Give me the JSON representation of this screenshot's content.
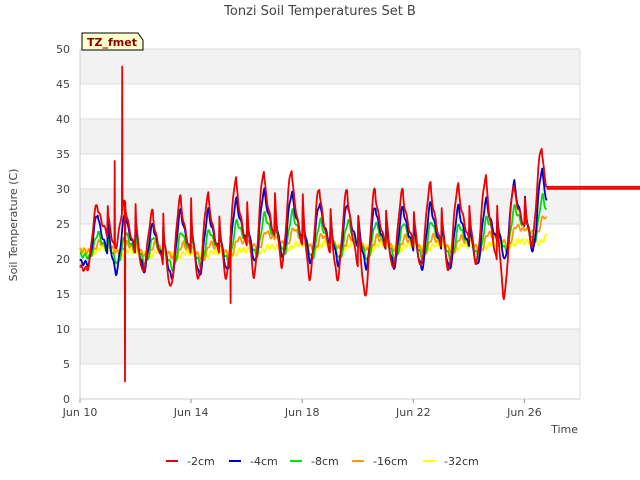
{
  "chart_data": {
    "type": "line",
    "title": "Tonzi Soil Temperatures Set B",
    "xlabel": "Time",
    "ylabel": "Soil Temperature (C)",
    "badge": "TZ_fmet",
    "xlim": [
      "2023-06-10",
      "2023-06-28"
    ],
    "ylim": [
      0,
      50
    ],
    "yticks": [
      0,
      5,
      10,
      15,
      20,
      25,
      30,
      35,
      40,
      45,
      50
    ],
    "xticks": [
      {
        "value": "2023-06-10",
        "label": "Jun 10"
      },
      {
        "value": "2023-06-14",
        "label": "Jun 14"
      },
      {
        "value": "2023-06-18",
        "label": "Jun 18"
      },
      {
        "value": "2023-06-22",
        "label": "Jun 22"
      },
      {
        "value": "2023-06-26",
        "label": "Jun 26"
      }
    ],
    "grid": "horizontal-bands",
    "legend_position": "bottom",
    "start_date": "2023-06-10",
    "series": [
      {
        "name": "-2cm",
        "color": "#ee0000",
        "daily_min": [
          18.5,
          21.5,
          18.0,
          15.8,
          17.0,
          17.2,
          17.5,
          19.0,
          17.2,
          17.0,
          14.6,
          18.5,
          18.8,
          18.2,
          19.3,
          14.5,
          22.0
        ],
        "daily_max": [
          27.8,
          28.2,
          26.8,
          28.8,
          29.2,
          31.5,
          32.5,
          32.8,
          30.2,
          30.0,
          30.0,
          29.8,
          30.7,
          30.5,
          31.8,
          30.5,
          36.0
        ],
        "spikes": [
          {
            "x": 1.25,
            "y": 34.0
          },
          {
            "x": 1.52,
            "y": 47.5
          },
          {
            "x": 1.62,
            "y": 2.5
          },
          {
            "x": 5.42,
            "y": 13.7
          },
          {
            "x": 20.6,
            "y": 16.0
          },
          {
            "x": 21.72,
            "y": 14.5
          },
          {
            "x": 21.85,
            "y": 16.2
          }
        ]
      },
      {
        "name": "-4cm",
        "color": "#0000cc",
        "daily_min": [
          19.3,
          18.0,
          18.3,
          17.2,
          17.6,
          18.2,
          19.5,
          20.2,
          19.5,
          19.2,
          18.8,
          18.8,
          18.5,
          18.5,
          19.0,
          19.8,
          21.0
        ],
        "daily_max": [
          26.5,
          26.5,
          25.0,
          27.0,
          27.0,
          28.5,
          29.8,
          29.5,
          28.0,
          28.0,
          27.5,
          27.5,
          28.0,
          27.5,
          28.5,
          31.0,
          32.8
        ]
      },
      {
        "name": "-8cm",
        "color": "#00dd00",
        "daily_min": [
          20.3,
          19.3,
          19.3,
          18.5,
          19.0,
          19.5,
          20.5,
          20.8,
          20.0,
          20.0,
          19.8,
          19.8,
          19.8,
          19.8,
          20.2,
          21.0,
          22.5
        ],
        "daily_max": [
          23.8,
          23.8,
          23.3,
          24.0,
          24.2,
          25.5,
          26.5,
          26.8,
          25.5,
          25.5,
          25.3,
          25.3,
          25.5,
          25.0,
          26.0,
          27.5,
          29.0
        ]
      },
      {
        "name": "-16cm",
        "color": "#ff9900",
        "daily_min": [
          21.0,
          20.8,
          20.3,
          20.0,
          20.0,
          20.5,
          21.5,
          21.8,
          21.2,
          21.2,
          21.0,
          21.0,
          21.0,
          21.0,
          21.2,
          22.0,
          23.5
        ],
        "daily_max": [
          22.5,
          22.3,
          22.3,
          22.2,
          22.3,
          23.0,
          24.0,
          24.5,
          23.5,
          23.3,
          23.3,
          23.2,
          23.3,
          23.2,
          23.8,
          24.8,
          26.2
        ]
      },
      {
        "name": "-32cm",
        "color": "#ffff00",
        "daily_min": [
          21.0,
          20.6,
          20.5,
          20.3,
          20.4,
          20.6,
          21.1,
          21.5,
          21.6,
          21.6,
          21.5,
          21.4,
          21.4,
          21.4,
          21.5,
          21.9,
          22.3
        ],
        "daily_max": [
          21.8,
          21.3,
          21.2,
          21.0,
          21.1,
          21.3,
          21.8,
          22.2,
          22.3,
          22.2,
          22.2,
          22.1,
          22.1,
          22.1,
          22.2,
          22.6,
          23.2
        ]
      }
    ]
  }
}
